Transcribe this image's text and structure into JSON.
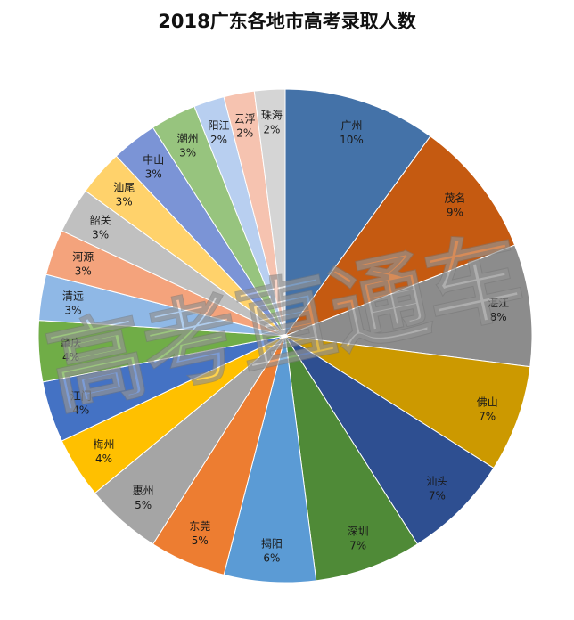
{
  "chart_data": {
    "type": "pie",
    "title": "2018广东各地市高考录取人数",
    "start_angle_deg": 90,
    "direction": "clockwise",
    "slices": [
      {
        "name": "广州",
        "label": "10%",
        "value": 10,
        "color": "#4472a8"
      },
      {
        "name": "茂名",
        "label": "9%",
        "value": 9,
        "color": "#c55a11"
      },
      {
        "name": "湛江",
        "label": "8%",
        "value": 8,
        "color": "#8c8c8c"
      },
      {
        "name": "佛山",
        "label": "7%",
        "value": 7,
        "color": "#cc9900"
      },
      {
        "name": "汕头",
        "label": "7%",
        "value": 7,
        "color": "#2e4f91"
      },
      {
        "name": "深圳",
        "label": "7%",
        "value": 7,
        "color": "#4f8a37"
      },
      {
        "name": "揭阳",
        "label": "6%",
        "value": 6,
        "color": "#5b9bd5"
      },
      {
        "name": "东莞",
        "label": "5%",
        "value": 5,
        "color": "#ed7d31"
      },
      {
        "name": "惠州",
        "label": "5%",
        "value": 5,
        "color": "#a5a5a5"
      },
      {
        "name": "梅州",
        "label": "4%",
        "value": 4,
        "color": "#ffc000"
      },
      {
        "name": "江门",
        "label": "4%",
        "value": 4,
        "color": "#4472c4"
      },
      {
        "name": "肇庆",
        "label": "4%",
        "value": 4,
        "color": "#70ad47"
      },
      {
        "name": "清远",
        "label": "3%",
        "value": 3,
        "color": "#8fb8e6"
      },
      {
        "name": "河源",
        "label": "3%",
        "value": 3,
        "color": "#f4a37c"
      },
      {
        "name": "韶关",
        "label": "3%",
        "value": 3,
        "color": "#c0c0c0"
      },
      {
        "name": "汕尾",
        "label": "3%",
        "value": 3,
        "color": "#ffd26b"
      },
      {
        "name": "中山",
        "label": "3%",
        "value": 3,
        "color": "#7b94d6"
      },
      {
        "name": "潮州",
        "label": "3%",
        "value": 3,
        "color": "#97c47e"
      },
      {
        "name": "阳江",
        "label": "2%",
        "value": 2,
        "color": "#b8cff0"
      },
      {
        "name": "云浮",
        "label": "2%",
        "value": 2,
        "color": "#f6c3b0"
      },
      {
        "name": "珠海",
        "label": "2%",
        "value": 2,
        "color": "#d5d5d5"
      }
    ]
  },
  "watermark": {
    "text": "高考直通车"
  }
}
